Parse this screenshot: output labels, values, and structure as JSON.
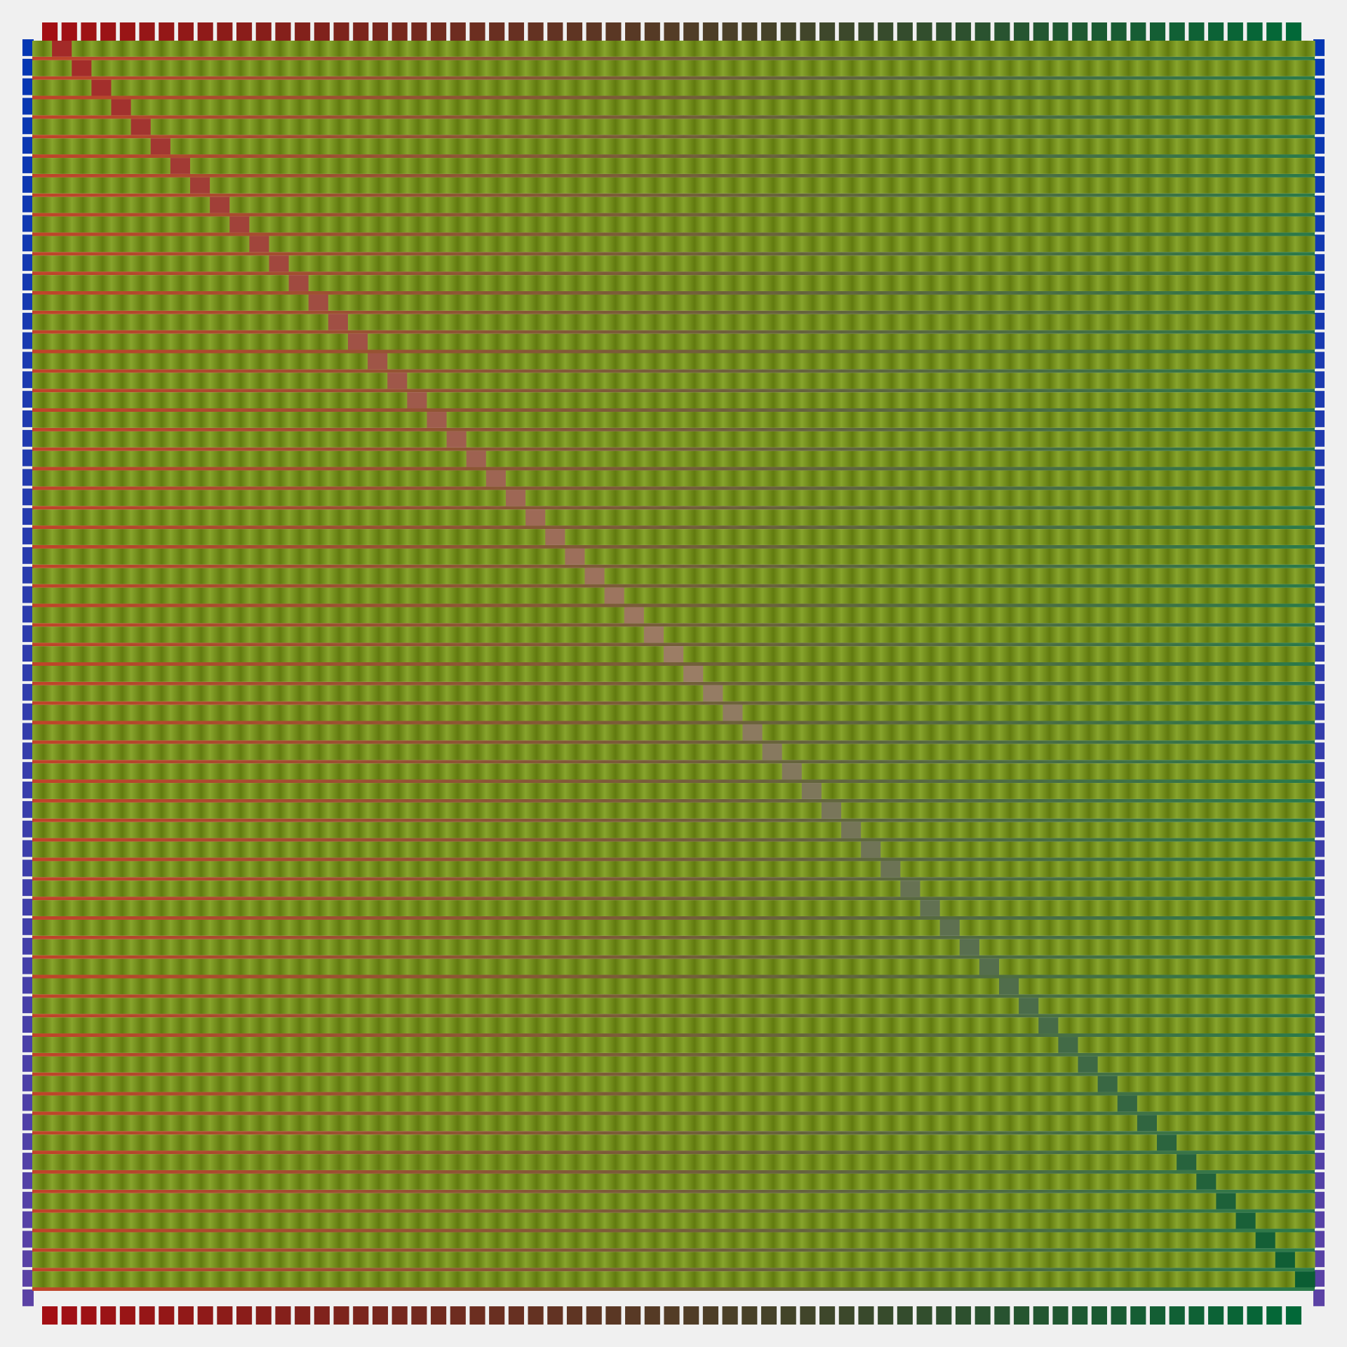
{
  "pattern": {
    "columns": 65,
    "rows": 64,
    "colors": {
      "background": "#f0f0f0",
      "top_tab_start": "#a30f14",
      "top_tab_end": "#026838",
      "left_tab_start": "#0537b3",
      "left_tab_end": "#5b42a5",
      "weave_light": "#88a52d",
      "weave_dark": "#627b0f",
      "diagonal_start": "#a32a28",
      "diagonal_mid": "#9c7e66",
      "diagonal_end": "#0b5d33",
      "thread_left": "#c0442a",
      "thread_right": "#2a7a4a"
    }
  }
}
